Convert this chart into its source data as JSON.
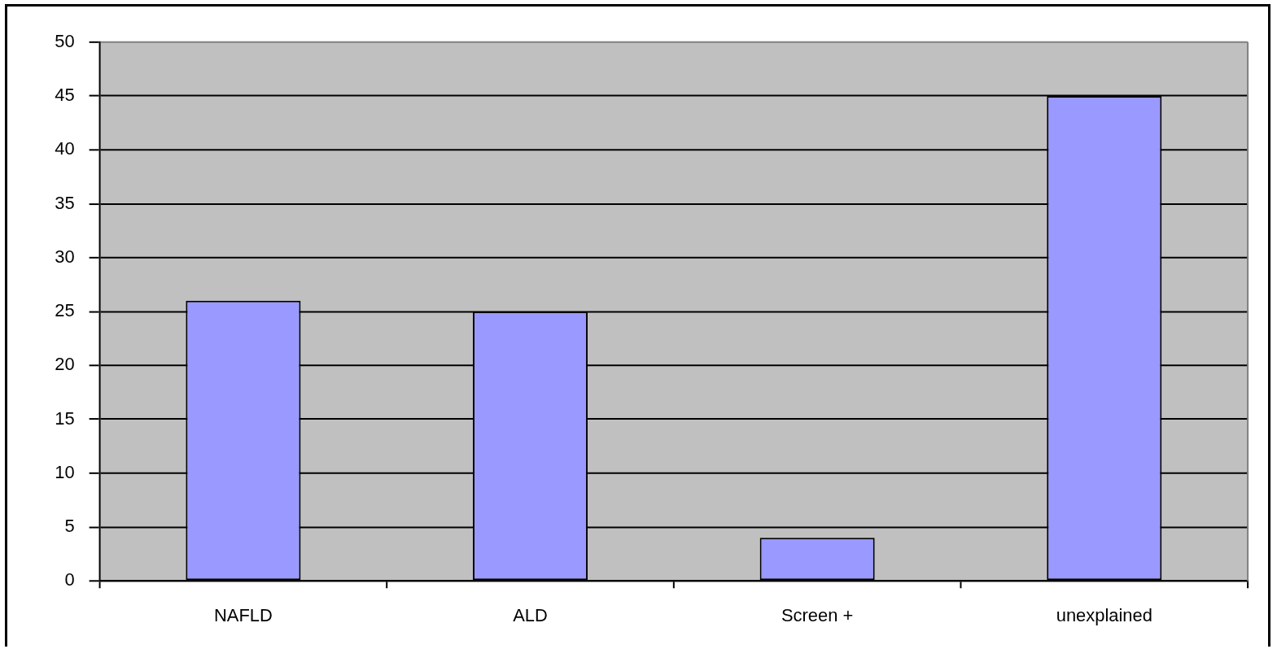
{
  "chart_data": {
    "type": "bar",
    "categories": [
      "NAFLD",
      "ALD",
      "Screen +",
      "unexplained"
    ],
    "values": [
      26,
      25,
      4,
      45
    ],
    "color": "#9999ff",
    "ylim": [
      0,
      50
    ],
    "yticks": [
      0,
      5,
      10,
      15,
      20,
      25,
      30,
      35,
      40,
      45,
      50
    ],
    "grid": "y"
  }
}
